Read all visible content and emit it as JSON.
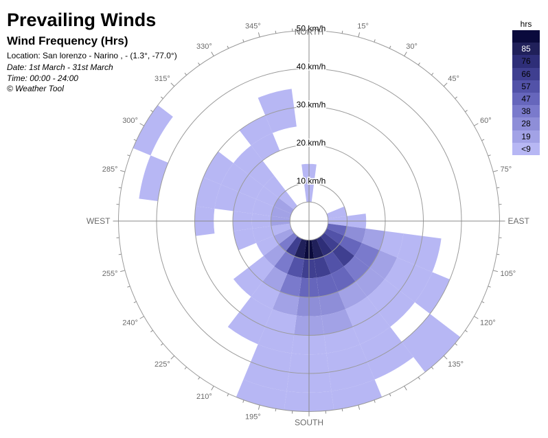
{
  "header": {
    "title": "Prevailing Winds",
    "subtitle": "Wind Frequency (Hrs)",
    "location": "Location: San lorenzo - Narino , - (1.3°, -77.0°)",
    "date": "Date: 1st March - 31st March",
    "time": "Time: 00:00 - 24:00",
    "credit": "© Weather Tool"
  },
  "legend": {
    "title": "hrs",
    "entries": [
      {
        "label": "",
        "color": "#0a0a3c"
      },
      {
        "label": "85",
        "color": "#20205a"
      },
      {
        "label": "76",
        "color": "#2e2e78"
      },
      {
        "label": "66",
        "color": "#3f3f90"
      },
      {
        "label": "57",
        "color": "#5252a8"
      },
      {
        "label": "47",
        "color": "#6666bc"
      },
      {
        "label": "38",
        "color": "#7a7acc"
      },
      {
        "label": "28",
        "color": "#8e8ed8"
      },
      {
        "label": "19",
        "color": "#a2a2e6"
      },
      {
        "label": "<9",
        "color": "#b7b7f4"
      }
    ]
  },
  "chart_data": {
    "type": "wind-rose",
    "title": "Prevailing Winds",
    "subtitle": "Wind Frequency (Hrs)",
    "radial_unit": "km/h",
    "radial_ticks": [
      {
        "value": 10,
        "label": "10 km/h"
      },
      {
        "value": 20,
        "label": "20 km/h"
      },
      {
        "value": 30,
        "label": "30 km/h"
      },
      {
        "value": 40,
        "label": "40 km/h"
      },
      {
        "value": 50,
        "label": "50 km/h"
      }
    ],
    "calm_radius_kmh": 5,
    "direction_step_deg": 15,
    "compass_labels": [
      {
        "angle": 0,
        "label": "NORTH"
      },
      {
        "angle": 90,
        "label": "EAST"
      },
      {
        "angle": 180,
        "label": "SOUTH"
      },
      {
        "angle": 270,
        "label": "WEST"
      }
    ],
    "angle_labels": [
      {
        "angle": 15,
        "label": "15°"
      },
      {
        "angle": 30,
        "label": "30°"
      },
      {
        "angle": 45,
        "label": "45°"
      },
      {
        "angle": 60,
        "label": "60°"
      },
      {
        "angle": 75,
        "label": "75°"
      },
      {
        "angle": 105,
        "label": "105°"
      },
      {
        "angle": 120,
        "label": "120°"
      },
      {
        "angle": 135,
        "label": "135°"
      },
      {
        "angle": 195,
        "label": "195°"
      },
      {
        "angle": 210,
        "label": "210°"
      },
      {
        "angle": 225,
        "label": "225°"
      },
      {
        "angle": 240,
        "label": "240°"
      },
      {
        "angle": 255,
        "label": "255°"
      },
      {
        "angle": 285,
        "label": "285°"
      },
      {
        "angle": 300,
        "label": "300°"
      },
      {
        "angle": 315,
        "label": "315°"
      },
      {
        "angle": 330,
        "label": "330°"
      },
      {
        "angle": 345,
        "label": "345°"
      }
    ],
    "cells": [
      {
        "dir": 90,
        "from": 5,
        "to": 10,
        "level": 9
      },
      {
        "dir": 90,
        "from": 10,
        "to": 15,
        "level": 9
      },
      {
        "dir": 105,
        "from": 5,
        "to": 10,
        "level": 5
      },
      {
        "dir": 105,
        "from": 10,
        "to": 15,
        "level": 7
      },
      {
        "dir": 105,
        "from": 15,
        "to": 20,
        "level": 8
      },
      {
        "dir": 105,
        "from": 20,
        "to": 25,
        "level": 9
      },
      {
        "dir": 105,
        "from": 25,
        "to": 30,
        "level": 9
      },
      {
        "dir": 105,
        "from": 30,
        "to": 35,
        "level": 9
      },
      {
        "dir": 120,
        "from": 5,
        "to": 10,
        "level": 4
      },
      {
        "dir": 120,
        "from": 10,
        "to": 15,
        "level": 5
      },
      {
        "dir": 120,
        "from": 15,
        "to": 20,
        "level": 6
      },
      {
        "dir": 120,
        "from": 20,
        "to": 25,
        "level": 8
      },
      {
        "dir": 120,
        "from": 25,
        "to": 30,
        "level": 9
      },
      {
        "dir": 120,
        "from": 30,
        "to": 35,
        "level": 9
      },
      {
        "dir": 120,
        "from": 35,
        "to": 40,
        "level": 9
      },
      {
        "dir": 135,
        "from": 5,
        "to": 10,
        "level": 3
      },
      {
        "dir": 135,
        "from": 10,
        "to": 15,
        "level": 3
      },
      {
        "dir": 135,
        "from": 15,
        "to": 20,
        "level": 6
      },
      {
        "dir": 135,
        "from": 20,
        "to": 25,
        "level": 8
      },
      {
        "dir": 135,
        "from": 25,
        "to": 30,
        "level": 9
      },
      {
        "dir": 135,
        "from": 30,
        "to": 35,
        "level": 9
      },
      {
        "dir": 135,
        "from": 40,
        "to": 50,
        "level": 9
      },
      {
        "dir": 150,
        "from": 5,
        "to": 10,
        "level": 2
      },
      {
        "dir": 150,
        "from": 10,
        "to": 15,
        "level": 4
      },
      {
        "dir": 150,
        "from": 15,
        "to": 20,
        "level": 5
      },
      {
        "dir": 150,
        "from": 20,
        "to": 25,
        "level": 8
      },
      {
        "dir": 150,
        "from": 25,
        "to": 30,
        "level": 9
      },
      {
        "dir": 150,
        "from": 30,
        "to": 35,
        "level": 9
      },
      {
        "dir": 150,
        "from": 35,
        "to": 40,
        "level": 9
      },
      {
        "dir": 150,
        "from": 40,
        "to": 45,
        "level": 9
      },
      {
        "dir": 165,
        "from": 5,
        "to": 10,
        "level": 1
      },
      {
        "dir": 165,
        "from": 10,
        "to": 15,
        "level": 3
      },
      {
        "dir": 165,
        "from": 15,
        "to": 20,
        "level": 5
      },
      {
        "dir": 165,
        "from": 20,
        "to": 25,
        "level": 7
      },
      {
        "dir": 165,
        "from": 25,
        "to": 30,
        "level": 8
      },
      {
        "dir": 165,
        "from": 30,
        "to": 35,
        "level": 9
      },
      {
        "dir": 165,
        "from": 35,
        "to": 40,
        "level": 9
      },
      {
        "dir": 165,
        "from": 40,
        "to": 45,
        "level": 9
      },
      {
        "dir": 165,
        "from": 45,
        "to": 50,
        "level": 9
      },
      {
        "dir": 180,
        "from": 5,
        "to": 10,
        "level": 0
      },
      {
        "dir": 180,
        "from": 10,
        "to": 15,
        "level": 3
      },
      {
        "dir": 180,
        "from": 15,
        "to": 20,
        "level": 5
      },
      {
        "dir": 180,
        "from": 20,
        "to": 25,
        "level": 7
      },
      {
        "dir": 180,
        "from": 25,
        "to": 30,
        "level": 8
      },
      {
        "dir": 180,
        "from": 30,
        "to": 35,
        "level": 9
      },
      {
        "dir": 180,
        "from": 35,
        "to": 40,
        "level": 9
      },
      {
        "dir": 180,
        "from": 40,
        "to": 45,
        "level": 9
      },
      {
        "dir": 180,
        "from": 45,
        "to": 50,
        "level": 9
      },
      {
        "dir": 195,
        "from": 5,
        "to": 10,
        "level": 1
      },
      {
        "dir": 195,
        "from": 10,
        "to": 15,
        "level": 4
      },
      {
        "dir": 195,
        "from": 15,
        "to": 20,
        "level": 6
      },
      {
        "dir": 195,
        "from": 20,
        "to": 25,
        "level": 8
      },
      {
        "dir": 195,
        "from": 25,
        "to": 30,
        "level": 9
      },
      {
        "dir": 195,
        "from": 30,
        "to": 35,
        "level": 9
      },
      {
        "dir": 195,
        "from": 35,
        "to": 40,
        "level": 9
      },
      {
        "dir": 195,
        "from": 40,
        "to": 45,
        "level": 9
      },
      {
        "dir": 195,
        "from": 45,
        "to": 50,
        "level": 9
      },
      {
        "dir": 210,
        "from": 5,
        "to": 10,
        "level": 3
      },
      {
        "dir": 210,
        "from": 10,
        "to": 15,
        "level": 6
      },
      {
        "dir": 210,
        "from": 15,
        "to": 20,
        "level": 8
      },
      {
        "dir": 210,
        "from": 20,
        "to": 25,
        "level": 9
      },
      {
        "dir": 210,
        "from": 25,
        "to": 30,
        "level": 9
      },
      {
        "dir": 210,
        "from": 30,
        "to": 35,
        "level": 9
      },
      {
        "dir": 225,
        "from": 5,
        "to": 10,
        "level": 6
      },
      {
        "dir": 225,
        "from": 10,
        "to": 15,
        "level": 8
      },
      {
        "dir": 225,
        "from": 15,
        "to": 20,
        "level": 9
      },
      {
        "dir": 225,
        "from": 20,
        "to": 25,
        "level": 9
      },
      {
        "dir": 240,
        "from": 5,
        "to": 10,
        "level": 8
      },
      {
        "dir": 240,
        "from": 10,
        "to": 15,
        "level": 9
      },
      {
        "dir": 255,
        "from": 5,
        "to": 10,
        "level": 9
      },
      {
        "dir": 255,
        "from": 10,
        "to": 15,
        "level": 9
      },
      {
        "dir": 255,
        "from": 15,
        "to": 20,
        "level": 9
      },
      {
        "dir": 270,
        "from": 5,
        "to": 10,
        "level": 8
      },
      {
        "dir": 270,
        "from": 10,
        "to": 15,
        "level": 9
      },
      {
        "dir": 270,
        "from": 15,
        "to": 20,
        "level": 9
      },
      {
        "dir": 270,
        "from": 25,
        "to": 30,
        "level": 9
      },
      {
        "dir": 285,
        "from": 5,
        "to": 10,
        "level": 8
      },
      {
        "dir": 285,
        "from": 10,
        "to": 15,
        "level": 9
      },
      {
        "dir": 285,
        "from": 15,
        "to": 20,
        "level": 9
      },
      {
        "dir": 285,
        "from": 20,
        "to": 25,
        "level": 9
      },
      {
        "dir": 285,
        "from": 25,
        "to": 30,
        "level": 9
      },
      {
        "dir": 285,
        "from": 40,
        "to": 45,
        "level": 9
      },
      {
        "dir": 300,
        "from": 5,
        "to": 10,
        "level": 8
      },
      {
        "dir": 300,
        "from": 10,
        "to": 15,
        "level": 9
      },
      {
        "dir": 300,
        "from": 15,
        "to": 20,
        "level": 9
      },
      {
        "dir": 300,
        "from": 20,
        "to": 25,
        "level": 9
      },
      {
        "dir": 300,
        "from": 25,
        "to": 30,
        "level": 9
      },
      {
        "dir": 300,
        "from": 45,
        "to": 50,
        "level": 9
      },
      {
        "dir": 315,
        "from": 5,
        "to": 10,
        "level": 9
      },
      {
        "dir": 315,
        "from": 10,
        "to": 15,
        "level": 9
      },
      {
        "dir": 315,
        "from": 15,
        "to": 20,
        "level": 9
      },
      {
        "dir": 315,
        "from": 20,
        "to": 25,
        "level": 9
      },
      {
        "dir": 330,
        "from": 20,
        "to": 25,
        "level": 9
      },
      {
        "dir": 330,
        "from": 25,
        "to": 30,
        "level": 9
      },
      {
        "dir": 345,
        "from": 25,
        "to": 30,
        "level": 9
      },
      {
        "dir": 345,
        "from": 30,
        "to": 35,
        "level": 9
      },
      {
        "dir": 0,
        "from": 5,
        "to": 10,
        "level": 9
      },
      {
        "dir": 0,
        "from": 10,
        "to": 15,
        "level": 9
      },
      {
        "dir": 75,
        "from": 5,
        "to": 10,
        "level": 9
      }
    ]
  }
}
